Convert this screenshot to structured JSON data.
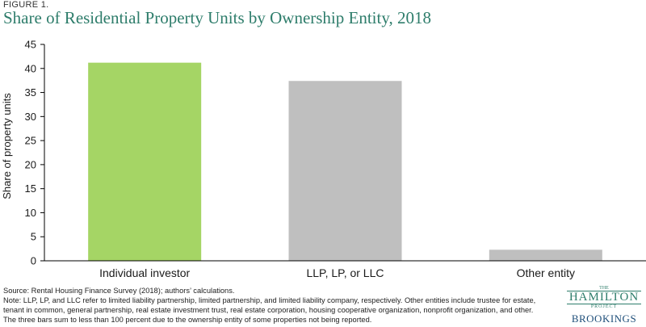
{
  "figure_label": "FIGURE 1.",
  "title": "Share of Residential Property Units by Ownership Entity, 2018",
  "notes": {
    "source": "Source: Rental Housing Finance Survey (2018); authors’ calculations.",
    "note_line1": "Note: LLP, LP, and LLC refer to limited liability partnership, limited partnership, and limited liability company, respectively. Other entities include trustee for estate,",
    "note_line2": "tenant in common, general partnership, real estate investment trust, real estate corporation, housing cooperative organization, nonprofit organization, and other.",
    "note_line3": "The three bars sum to less than 100 percent due to the ownership entity of some properties not being reported."
  },
  "logo": {
    "the": "THE",
    "hamilton": "HAMILTON",
    "project": "PROJECT",
    "brookings": "BROOKINGS"
  },
  "colors": {
    "title": "#2e7d6b",
    "highlight_bar": "#a5d565",
    "bar": "#bfbfbf",
    "axis": "#000000"
  },
  "chart_data": {
    "type": "bar",
    "categories": [
      "Individual investor",
      "LLP, LP, or LLC",
      "Other entity"
    ],
    "values": [
      41.2,
      37.4,
      2.3
    ],
    "bar_colors": [
      "#a5d565",
      "#bfbfbf",
      "#bfbfbf"
    ],
    "ylabel": "Share of property units",
    "xlabel": "",
    "ylim": [
      0,
      45
    ],
    "yticks": [
      0,
      5,
      10,
      15,
      20,
      25,
      30,
      35,
      40,
      45
    ],
    "grid": false,
    "legend": "none"
  }
}
